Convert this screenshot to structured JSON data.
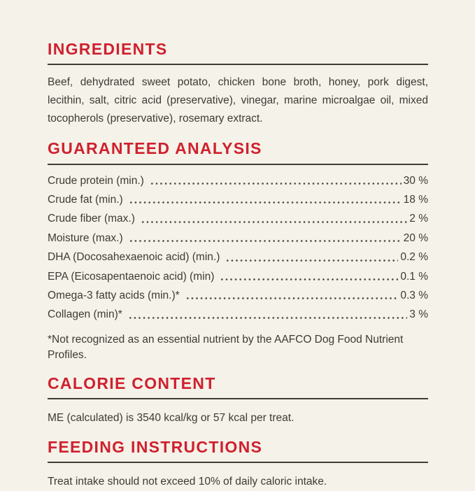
{
  "page": {
    "background_color": "#f4f2e9",
    "accent_color": "#d0202e",
    "text_color": "#3e3b35"
  },
  "sections": {
    "ingredients": {
      "heading": "INGREDIENTS",
      "body": "Beef, dehydrated sweet potato, chicken bone broth, honey, pork digest, lecithin, salt, citric acid (preservative), vinegar, marine microalgae oil, mixed tocopherols (preservative), rosemary extract."
    },
    "guaranteed_analysis": {
      "heading": "GUARANTEED ANALYSIS",
      "rows": [
        {
          "label": "Crude protein (min.)",
          "value": "30 %"
        },
        {
          "label": "Crude fat (min.)",
          "value": "18 %"
        },
        {
          "label": "Crude fiber (max.)",
          "value": "2 %"
        },
        {
          "label": "Moisture (max.)",
          "value": "20 %"
        },
        {
          "label": "DHA (Docosahexaenoic acid) (min.)",
          "value": "0.2 %"
        },
        {
          "label": "EPA (Eicosapentaenoic acid) (min)",
          "value": "0.1 %"
        },
        {
          "label": "Omega-3 fatty acids (min.)*",
          "value": "0.3 %"
        },
        {
          "label": "Collagen (min)*",
          "value": "3 %"
        }
      ],
      "footnote": "*Not recognized as an essential nutrient by the AAFCO Dog Food Nutrient Profiles."
    },
    "calorie_content": {
      "heading": "CALORIE CONTENT",
      "body": "ME (calculated) is 3540 kcal/kg or 57 kcal per treat."
    },
    "feeding_instructions": {
      "heading": "FEEDING INSTRUCTIONS",
      "body": "Treat intake should not exceed 10% of daily caloric intake."
    }
  }
}
